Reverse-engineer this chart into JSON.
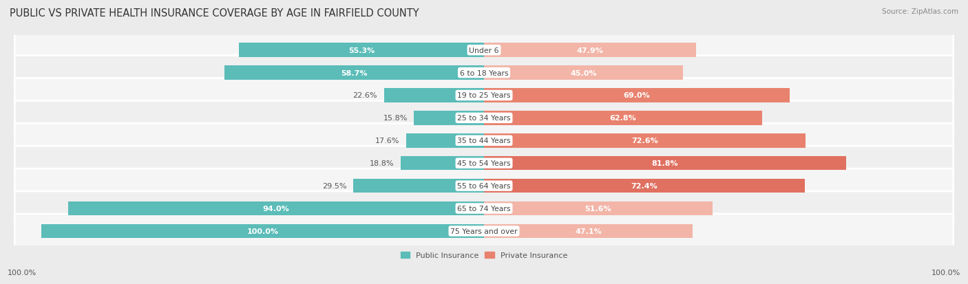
{
  "title": "PUBLIC VS PRIVATE HEALTH INSURANCE COVERAGE BY AGE IN FAIRFIELD COUNTY",
  "source": "Source: ZipAtlas.com",
  "categories": [
    "Under 6",
    "6 to 18 Years",
    "19 to 25 Years",
    "25 to 34 Years",
    "35 to 44 Years",
    "45 to 54 Years",
    "55 to 64 Years",
    "65 to 74 Years",
    "75 Years and over"
  ],
  "public_values": [
    55.3,
    58.7,
    22.6,
    15.8,
    17.6,
    18.8,
    29.5,
    94.0,
    100.0
  ],
  "private_values": [
    47.9,
    45.0,
    69.0,
    62.8,
    72.6,
    81.8,
    72.4,
    51.6,
    47.1
  ],
  "public_color": "#5bbcb8",
  "private_colors": [
    "#f2b5a8",
    "#f2b5a8",
    "#e8826e",
    "#e8826e",
    "#e8826e",
    "#e07060",
    "#e07060",
    "#f2b5a8",
    "#f2b5a8"
  ],
  "bg_color": "#ebebeb",
  "row_bg_color": "#f5f5f5",
  "row_alt_bg_color": "#eeeeee",
  "label_color_light": "#ffffff",
  "label_color_dark": "#555555",
  "max_value": 100.0,
  "bar_height": 0.62,
  "title_fontsize": 10.5,
  "label_fontsize": 8,
  "category_fontsize": 7.8,
  "source_fontsize": 7.5,
  "legend_fontsize": 8,
  "footer_fontsize": 8
}
